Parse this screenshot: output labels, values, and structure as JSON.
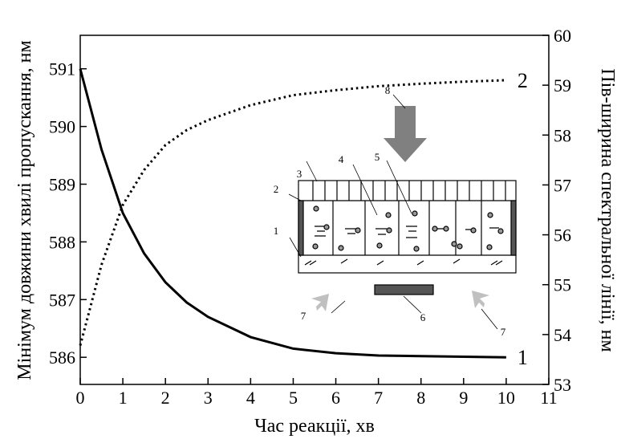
{
  "chart_data": {
    "type": "line",
    "x_label": "Час реакції, хв",
    "y_label": "Мінімум довжини хвилі пропускання, нм",
    "y2_label": "Пів-ширина спектральної лінії, нм",
    "x": [
      0,
      0.5,
      1,
      1.5,
      2,
      2.5,
      3,
      4,
      5,
      6,
      7,
      8,
      9,
      10
    ],
    "series": [
      {
        "name": "1",
        "color": "#000000",
        "style": "solid",
        "values": [
          591,
          589.6,
          588.5,
          587.8,
          587.3,
          586.95,
          586.7,
          586.35,
          586.15,
          586.07,
          586.03,
          586.02,
          586.01,
          586.0
        ]
      },
      {
        "name": "2",
        "color": "#000000",
        "style": "dotted",
        "axis": "y2",
        "values": [
          53.78,
          55.4,
          56.6,
          57.3,
          57.8,
          58.1,
          58.3,
          58.6,
          58.8,
          58.9,
          58.98,
          59.03,
          59.07,
          59.1
        ]
      }
    ],
    "xlim": [
      0,
      11
    ],
    "xticks": [
      0,
      1,
      2,
      3,
      4,
      5,
      6,
      7,
      8,
      9,
      10,
      11
    ],
    "ylim": [
      585.53,
      591.58
    ],
    "yticks": [
      586,
      587,
      588,
      589,
      590,
      591
    ],
    "y2lim": [
      53,
      60
    ],
    "y2ticks": [
      53,
      54,
      55,
      56,
      57,
      58,
      59,
      60
    ],
    "inset_labels": [
      "3",
      "4",
      "5",
      "2",
      "1",
      "8",
      "6",
      "7",
      "7"
    ]
  }
}
